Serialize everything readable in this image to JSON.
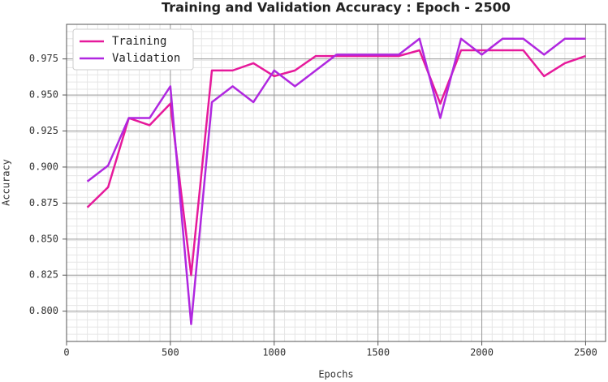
{
  "chart_data": {
    "type": "line",
    "title": "Training and Validation Accuracy : Epoch - 2500",
    "x_label": "Epochs",
    "y_label": "Accuracy",
    "x": [
      100,
      200,
      300,
      400,
      500,
      600,
      700,
      800,
      900,
      1000,
      1100,
      1200,
      1300,
      1400,
      1500,
      1600,
      1700,
      1800,
      1900,
      2000,
      2100,
      2200,
      2300,
      2400,
      2500
    ],
    "series": [
      {
        "name": "Training",
        "color": "#e6199b",
        "values": [
          0.872,
          0.886,
          0.934,
          0.929,
          0.944,
          0.825,
          0.967,
          0.967,
          0.972,
          0.963,
          0.967,
          0.977,
          0.977,
          0.977,
          0.977,
          0.977,
          0.981,
          0.944,
          0.981,
          0.981,
          0.981,
          0.981,
          0.963,
          0.972,
          0.977
        ]
      },
      {
        "name": "Validation",
        "color": "#b027e0",
        "values": [
          0.89,
          0.901,
          0.934,
          0.934,
          0.956,
          0.791,
          0.945,
          0.956,
          0.945,
          0.967,
          0.956,
          0.967,
          0.978,
          0.978,
          0.978,
          0.978,
          0.989,
          0.934,
          0.989,
          0.978,
          0.989,
          0.989,
          0.978,
          0.989,
          0.989
        ]
      }
    ],
    "xlim": [
      0,
      2600
    ],
    "ylim": [
      0.779,
      0.999
    ],
    "xticks": [
      0,
      500,
      1000,
      1500,
      2000,
      2500
    ],
    "yticks": [
      {
        "value": 0.8,
        "label": "0.800"
      },
      0.825,
      {
        "value": 0.85,
        "label": "0.850"
      },
      0.875,
      {
        "value": 0.9,
        "label": "0.900"
      },
      0.925,
      {
        "value": 0.95,
        "label": "0.950"
      },
      0.975
    ],
    "grid": true,
    "legend": "upper left"
  }
}
